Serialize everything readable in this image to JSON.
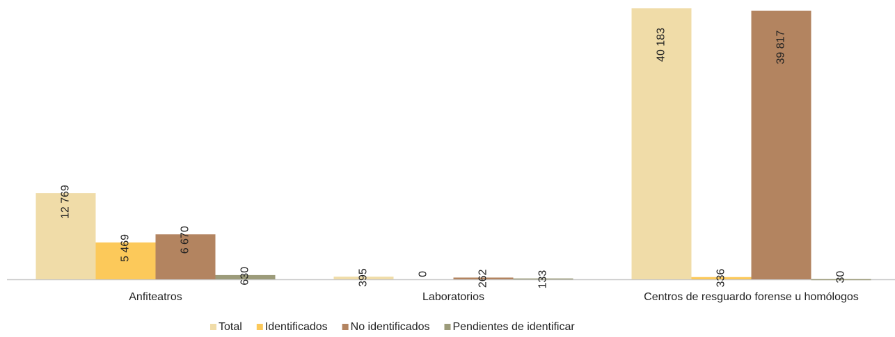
{
  "chart_data": {
    "type": "bar",
    "categories": [
      "Anfiteatros",
      "Laboratorios",
      "Centros de resguardo forense u homólogos"
    ],
    "series": [
      {
        "name": "Total",
        "color": "#f0dca8",
        "values": [
          12769,
          395,
          40183
        ],
        "value_labels": [
          "12 769",
          "395",
          "40 183"
        ]
      },
      {
        "name": "Identificados",
        "color": "#fcc95a",
        "values": [
          5469,
          0,
          336
        ],
        "value_labels": [
          "5 469",
          "0",
          "336"
        ]
      },
      {
        "name": "No identificados",
        "color": "#b38460",
        "values": [
          6670,
          262,
          39817
        ],
        "value_labels": [
          "6 670",
          "262",
          "39 817"
        ]
      },
      {
        "name": "Pendientes de identificar",
        "color": "#9c9b7a",
        "values": [
          630,
          133,
          30
        ],
        "value_labels": [
          "630",
          "133",
          "30"
        ]
      }
    ],
    "legend": "bottom"
  }
}
